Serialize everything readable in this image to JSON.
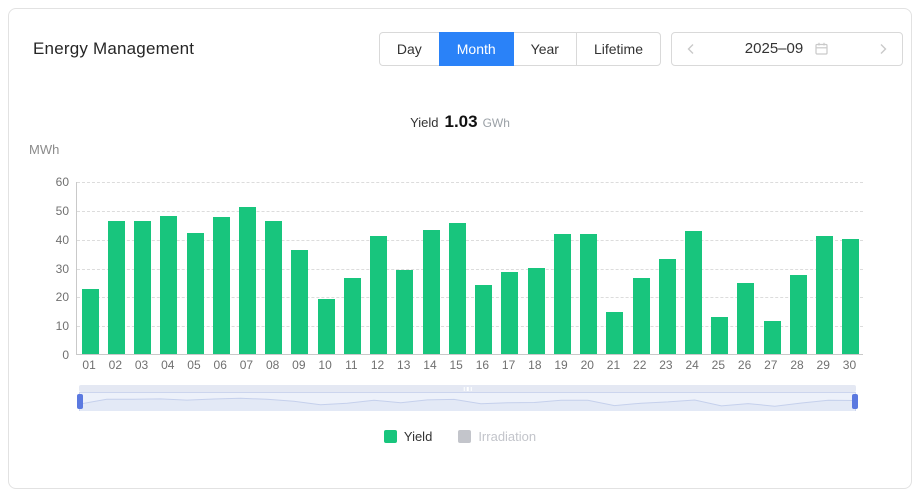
{
  "colors": {
    "accent_blue": "#2a82f8",
    "bar_green": "#18c57d",
    "legend_inactive_gray": "#c3c5cb",
    "slider_handle_blue": "#5b79e0"
  },
  "header": {
    "title": "Energy Management",
    "tabs": [
      {
        "label": "Day",
        "active": false
      },
      {
        "label": "Month",
        "active": true
      },
      {
        "label": "Year",
        "active": false
      },
      {
        "label": "Lifetime",
        "active": false
      }
    ],
    "date_nav": {
      "value": "2025–09"
    }
  },
  "summary": {
    "yield_label": "Yield",
    "yield_value": "1.03",
    "yield_unit": "GWh"
  },
  "chart_data": {
    "type": "bar",
    "title": "Yield 1.03 GWh",
    "ylabel": "MWh",
    "xlabel": "",
    "categories": [
      "01",
      "02",
      "03",
      "04",
      "05",
      "06",
      "07",
      "08",
      "09",
      "10",
      "11",
      "12",
      "13",
      "14",
      "15",
      "16",
      "17",
      "18",
      "19",
      "20",
      "21",
      "22",
      "23",
      "24",
      "25",
      "26",
      "27",
      "28",
      "29",
      "30"
    ],
    "values": [
      22.5,
      46,
      46,
      48,
      42,
      47.5,
      51,
      46,
      36,
      19,
      26.5,
      41,
      29,
      43,
      45.5,
      24,
      28.5,
      30,
      41.5,
      41.5,
      14.5,
      26.5,
      33,
      42.5,
      13,
      24.5,
      11.5,
      27.5,
      41,
      40
    ],
    "ylim": [
      0,
      60
    ],
    "yticks": [
      0,
      10,
      20,
      30,
      40,
      50,
      60
    ],
    "grid": "horizontal-dashed",
    "bar_color": "#18c57d",
    "legend_position": "bottom-center",
    "legend": [
      {
        "label": "Yield",
        "color": "#18c57d",
        "active": true
      },
      {
        "label": "Irradiation",
        "color": "#c3c5cb",
        "active": false
      }
    ]
  }
}
